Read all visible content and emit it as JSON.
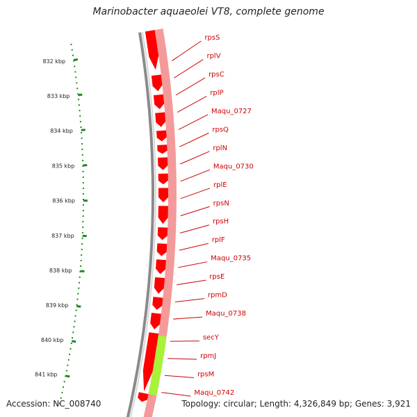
{
  "title": "Marinobacter aquaeolei VT8, complete genome",
  "accession": "Accession: NC_008740",
  "stats": "Topology: circular; Length: 4,326,849 bp; Genes: 3,921",
  "colors": {
    "cds": "#ff0000",
    "cds_light": "#f49a9a",
    "secY": "#a8f23a",
    "backbone": "#8a8a8a",
    "ruler": "#1a8a1a",
    "label": "#cc0000"
  },
  "ruler_ticks": [
    "832 kbp",
    "833 kbp",
    "834 kbp",
    "835 kbp",
    "836 kbp",
    "837 kbp",
    "838 kbp",
    "839 kbp",
    "840 kbp",
    "841 kbp"
  ],
  "gene_labels": [
    "rpsS",
    "rplV",
    "rpsC",
    "rplP",
    "Maqu_0727",
    "rpsQ",
    "rplN",
    "Maqu_0730",
    "rplE",
    "rpsN",
    "rpsH",
    "rplF",
    "Maqu_0735",
    "rpsE",
    "rpmD",
    "Maqu_0738",
    "secY",
    "rpmJ",
    "rpsM",
    "Maqu_0742"
  ]
}
